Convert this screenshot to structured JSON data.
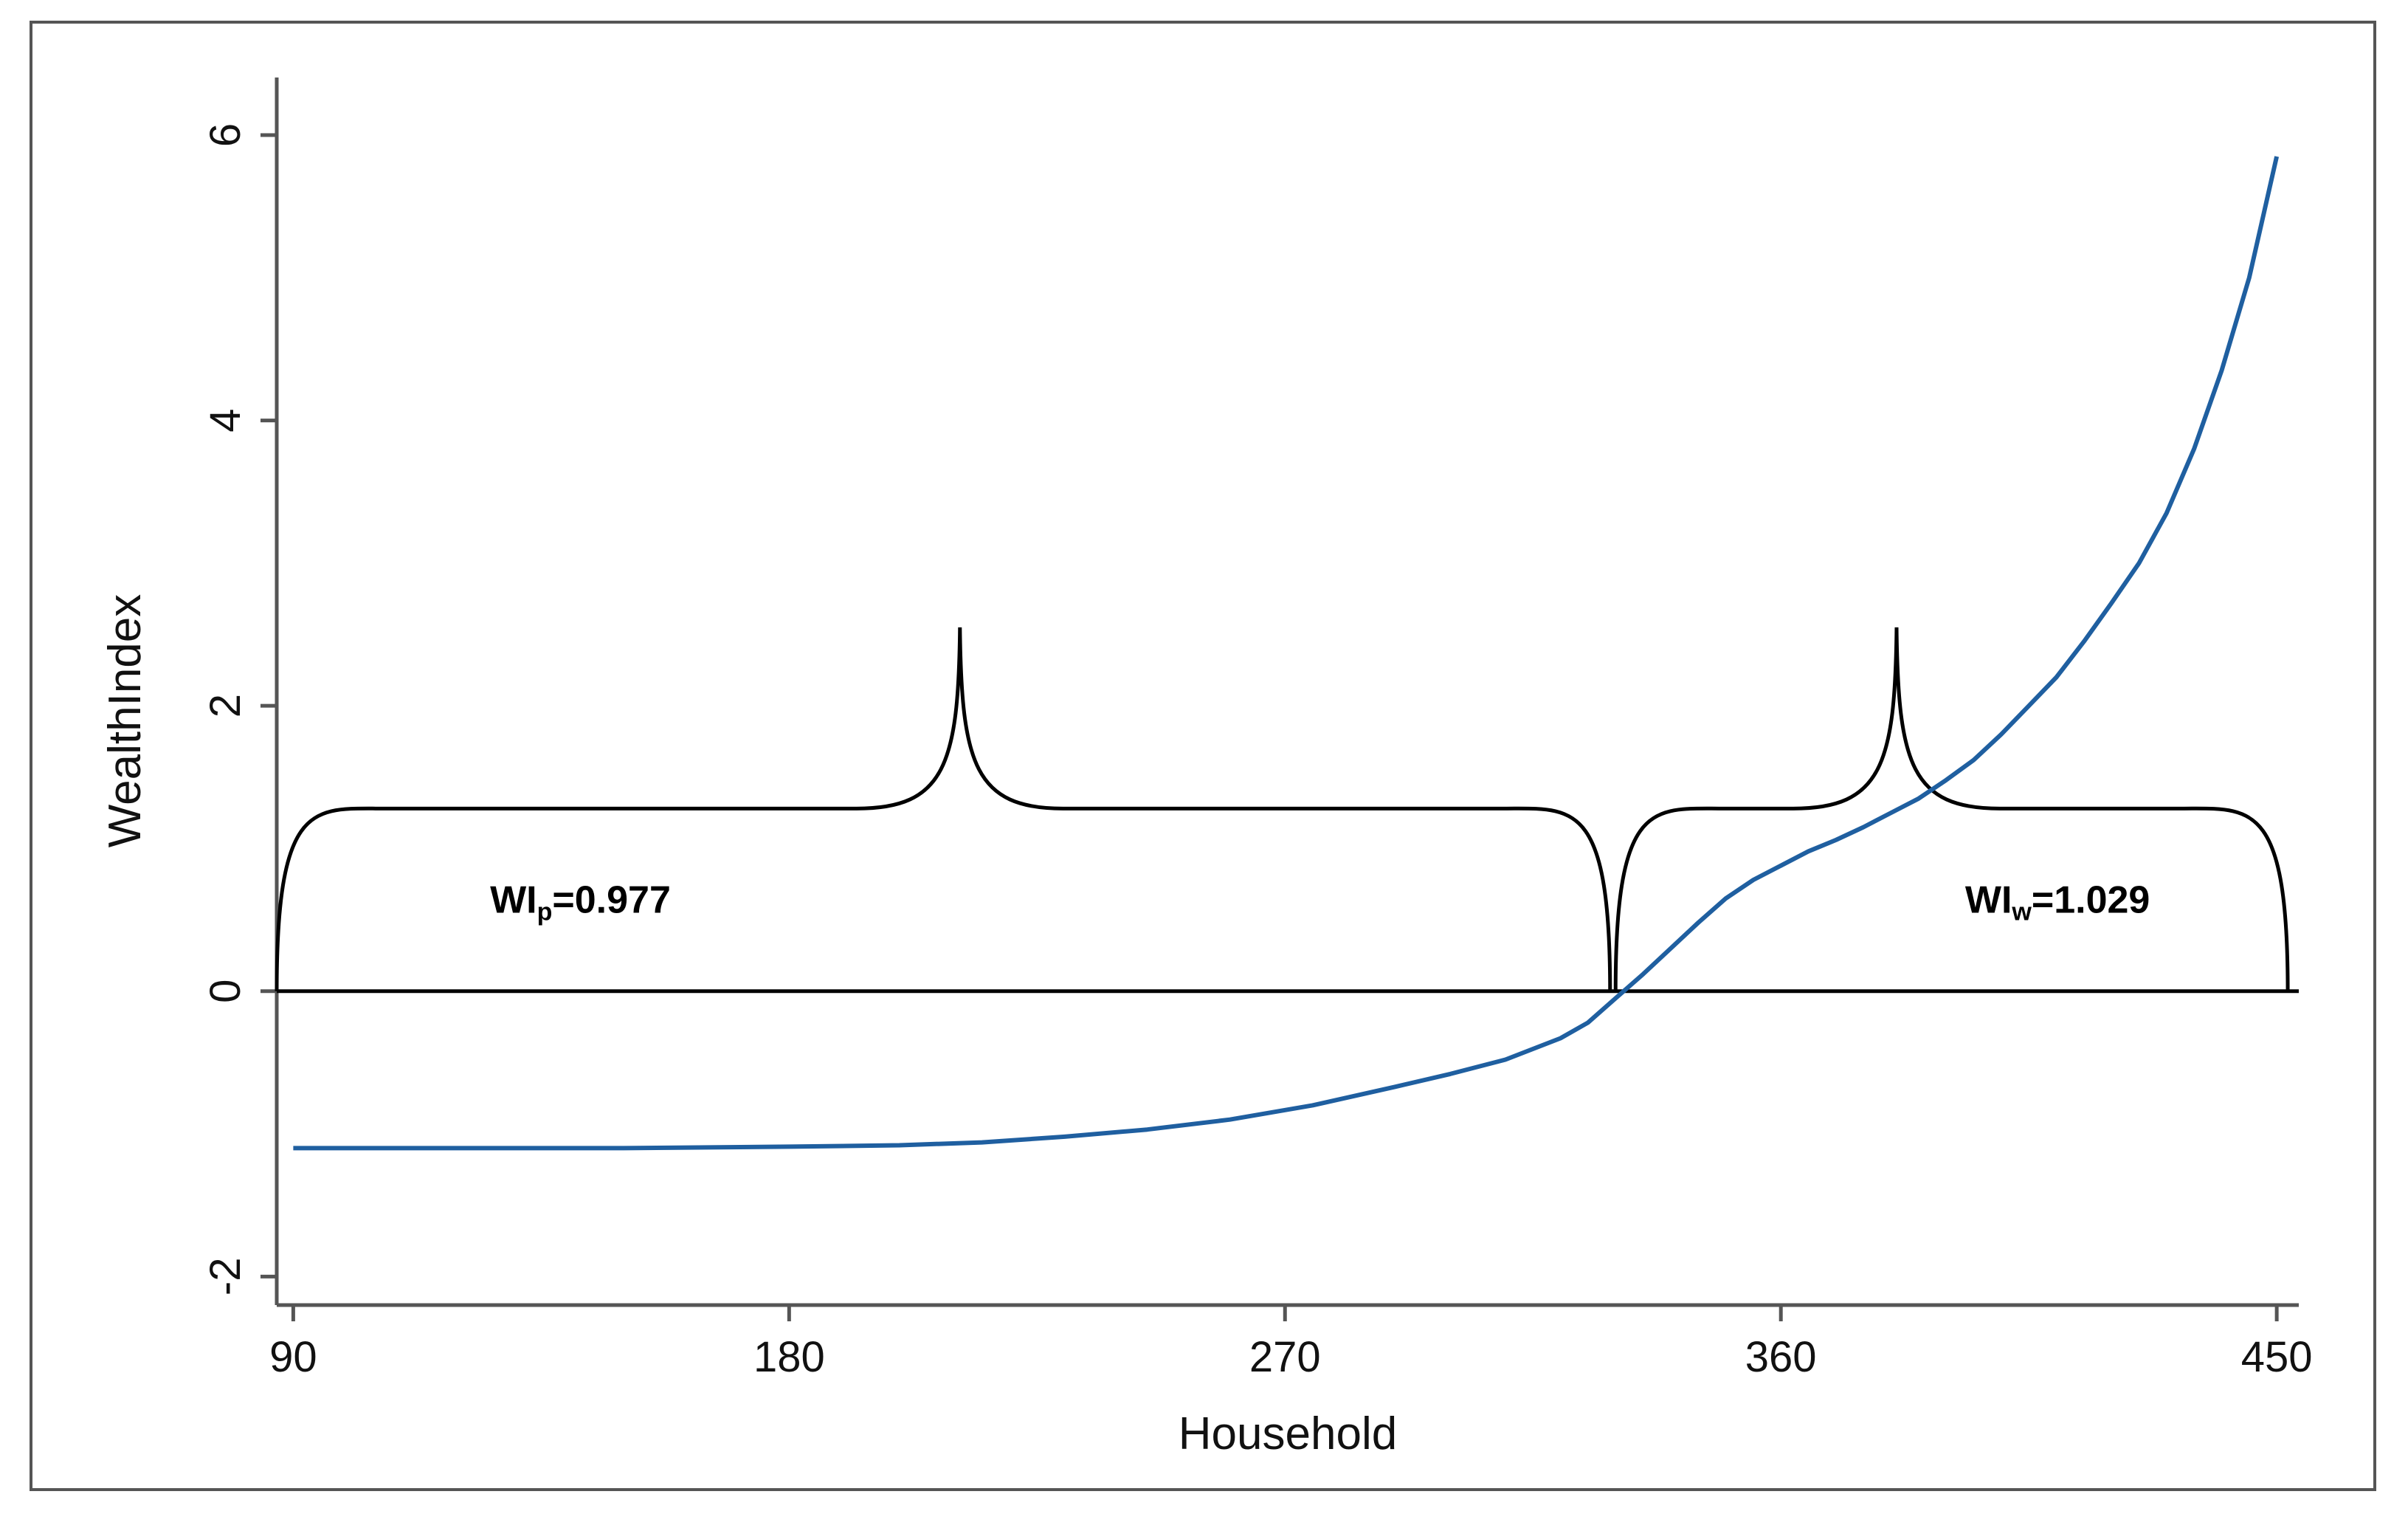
{
  "chart_data": {
    "type": "line",
    "xlabel": "Household",
    "ylabel": "WealthIndex",
    "xlim": [
      87,
      454
    ],
    "ylim": [
      -2.2,
      6.3
    ],
    "xticks": [
      "90",
      "180",
      "270",
      "360",
      "450"
    ],
    "yticks": [
      "-2",
      "0",
      "2",
      "4",
      "6"
    ],
    "grid": false,
    "series": [
      {
        "color": "#1f5fa0",
        "x": [
          90,
          120,
          150,
          180,
          200,
          215,
          230,
          245,
          260,
          275,
          290,
          300,
          310,
          320,
          325,
          330,
          335,
          340,
          345,
          350,
          355,
          360,
          365,
          370,
          375,
          380,
          385,
          390,
          395,
          400,
          405,
          410,
          415,
          420,
          425,
          430,
          435,
          440,
          445,
          450
        ],
        "y": [
          -1.1,
          -1.1,
          -1.1,
          -1.09,
          -1.08,
          -1.06,
          -1.02,
          -0.97,
          -0.9,
          -0.8,
          -0.67,
          -0.58,
          -0.48,
          -0.33,
          -0.22,
          -0.05,
          0.12,
          0.3,
          0.48,
          0.65,
          0.78,
          0.88,
          0.98,
          1.06,
          1.15,
          1.25,
          1.35,
          1.48,
          1.62,
          1.8,
          2.0,
          2.2,
          2.45,
          2.72,
          3.0,
          3.35,
          3.8,
          4.35,
          5.0,
          5.85
        ]
      }
    ],
    "braces": [
      {
        "from": 87,
        "to": 329,
        "peak": 211,
        "label": "WI",
        "sub": "p",
        "value": "=0.977"
      },
      {
        "from": 330,
        "to": 452,
        "peak": 381,
        "label": "WI",
        "sub": "w",
        "value": "=1.029"
      }
    ],
    "brace_level": 1.28,
    "brace_tip": 2.55
  }
}
